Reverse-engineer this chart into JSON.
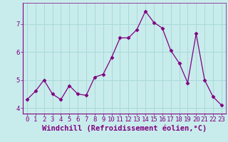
{
  "x": [
    0,
    1,
    2,
    3,
    4,
    5,
    6,
    7,
    8,
    9,
    10,
    11,
    12,
    13,
    14,
    15,
    16,
    17,
    18,
    19,
    20,
    21,
    22,
    23
  ],
  "y": [
    4.3,
    4.6,
    5.0,
    4.5,
    4.3,
    4.8,
    4.5,
    4.45,
    5.1,
    5.2,
    5.8,
    6.5,
    6.5,
    6.8,
    7.45,
    7.05,
    6.85,
    6.05,
    5.6,
    4.9,
    6.65,
    5.0,
    4.4,
    4.1
  ],
  "line_color": "#800080",
  "marker": "D",
  "marker_size": 2.5,
  "bg_color": "#c8ecec",
  "grid_color": "#aad8d8",
  "xlabel": "Windchill (Refroidissement éolien,°C)",
  "ylim": [
    3.8,
    7.75
  ],
  "xlim": [
    -0.5,
    23.5
  ],
  "yticks": [
    4,
    5,
    6,
    7
  ],
  "xticks": [
    0,
    1,
    2,
    3,
    4,
    5,
    6,
    7,
    8,
    9,
    10,
    11,
    12,
    13,
    14,
    15,
    16,
    17,
    18,
    19,
    20,
    21,
    22,
    23
  ],
  "tick_color": "#800080",
  "label_color": "#800080",
  "axis_color": "#800080",
  "font_size": 6.5,
  "xlabel_fontsize": 7.5
}
